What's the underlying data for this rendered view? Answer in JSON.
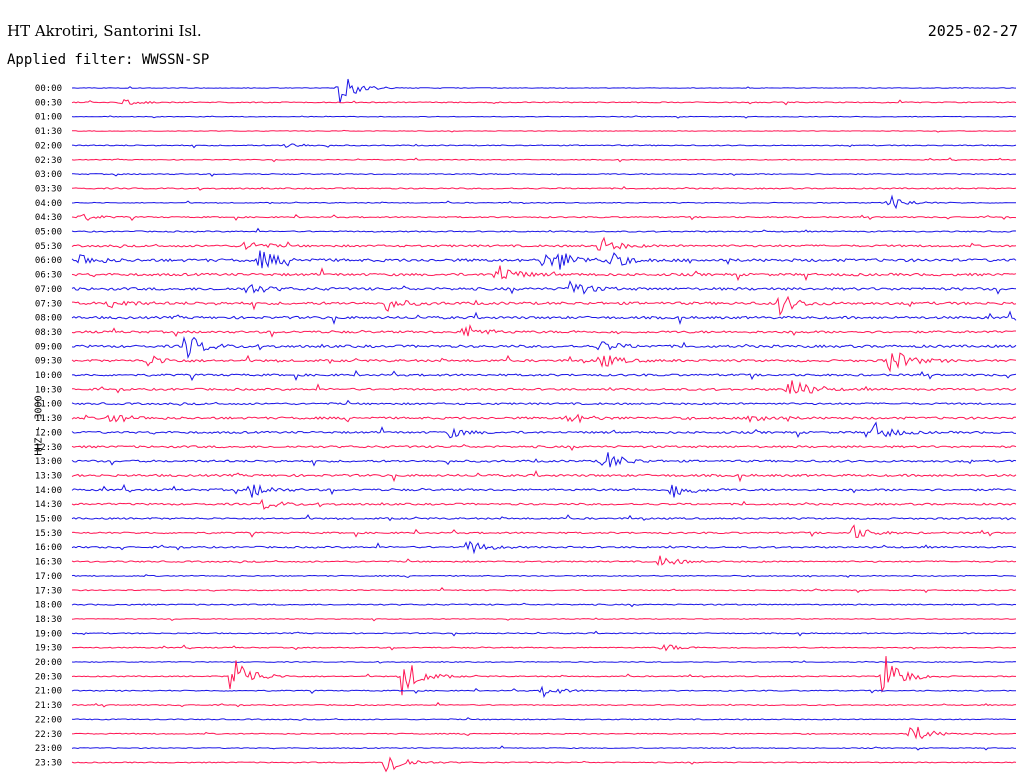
{
  "header": {
    "station": "HT Akrotiri, Santorini Isl.",
    "date": "2025-02-27",
    "filter": "Applied filter: WWSSN-SP"
  },
  "channel_label": "HHZ - 3000",
  "colors": {
    "even": "#1a14e6",
    "odd": "#ff1654"
  },
  "chart_data": {
    "type": "helicorder",
    "title": "HT Akrotiri, Santorini Isl.",
    "date": "2025-02-27",
    "ylabel": "HHZ - 3000",
    "trace_times": [
      "00:00",
      "00:30",
      "01:00",
      "01:30",
      "02:00",
      "02:30",
      "03:00",
      "03:30",
      "04:00",
      "04:30",
      "05:00",
      "05:30",
      "06:00",
      "06:30",
      "07:00",
      "07:30",
      "08:00",
      "08:30",
      "09:00",
      "09:30",
      "10:00",
      "10:30",
      "11:00",
      "11:30",
      "12:00",
      "12:30",
      "13:00",
      "13:30",
      "14:00",
      "14:30",
      "15:00",
      "15:30",
      "16:00",
      "16:30",
      "17:00",
      "17:30",
      "18:00",
      "18:30",
      "19:00",
      "19:30",
      "20:00",
      "20:30",
      "21:00",
      "21:30",
      "22:00",
      "22:30",
      "23:00",
      "23:30"
    ],
    "noise_level": [
      0.3,
      0.5,
      0.3,
      0.3,
      0.5,
      0.4,
      0.5,
      0.6,
      0.4,
      0.6,
      0.6,
      1.0,
      1.4,
      1.2,
      1.3,
      1.3,
      1.2,
      1.1,
      1.2,
      1.1,
      1.0,
      1.0,
      0.9,
      1.1,
      1.0,
      1.0,
      1.0,
      1.1,
      1.0,
      0.9,
      0.8,
      0.8,
      0.8,
      0.7,
      0.5,
      0.5,
      0.6,
      0.4,
      0.5,
      0.5,
      0.4,
      0.5,
      0.5,
      0.5,
      0.5,
      0.5,
      0.4,
      0.5
    ],
    "events": [
      {
        "row": 0,
        "minute": 8.5,
        "amplitude": 16
      },
      {
        "row": 1,
        "minute": 1.6,
        "amplitude": 3
      },
      {
        "row": 4,
        "minute": 6.8,
        "amplitude": 3
      },
      {
        "row": 8,
        "minute": 26.0,
        "amplitude": 8
      },
      {
        "row": 9,
        "minute": 0.3,
        "amplitude": 4
      },
      {
        "row": 11,
        "minute": 5.5,
        "amplitude": 6
      },
      {
        "row": 11,
        "minute": 16.8,
        "amplitude": 9
      },
      {
        "row": 12,
        "minute": 0.2,
        "amplitude": 7
      },
      {
        "row": 12,
        "minute": 6.0,
        "amplitude": 10
      },
      {
        "row": 12,
        "minute": 15.0,
        "amplitude": 8
      },
      {
        "row": 12,
        "minute": 15.5,
        "amplitude": 7
      },
      {
        "row": 12,
        "minute": 17.0,
        "amplitude": 10
      },
      {
        "row": 13,
        "minute": 13.5,
        "amplitude": 12
      },
      {
        "row": 14,
        "minute": 5.5,
        "amplitude": 7
      },
      {
        "row": 14,
        "minute": 15.8,
        "amplitude": 10
      },
      {
        "row": 15,
        "minute": 1.2,
        "amplitude": 5
      },
      {
        "row": 15,
        "minute": 10.0,
        "amplitude": 6
      },
      {
        "row": 15,
        "minute": 22.5,
        "amplitude": 10
      },
      {
        "row": 17,
        "minute": 12.5,
        "amplitude": 8
      },
      {
        "row": 18,
        "minute": 3.6,
        "amplitude": 14
      },
      {
        "row": 18,
        "minute": 16.8,
        "amplitude": 6
      },
      {
        "row": 19,
        "minute": 2.4,
        "amplitude": 6
      },
      {
        "row": 19,
        "minute": 16.8,
        "amplitude": 8
      },
      {
        "row": 19,
        "minute": 26.0,
        "amplitude": 14
      },
      {
        "row": 21,
        "minute": 22.8,
        "amplitude": 14
      },
      {
        "row": 23,
        "minute": 1.2,
        "amplitude": 6
      },
      {
        "row": 23,
        "minute": 15.8,
        "amplitude": 6
      },
      {
        "row": 23,
        "minute": 21.6,
        "amplitude": 6
      },
      {
        "row": 24,
        "minute": 12.0,
        "amplitude": 5
      },
      {
        "row": 24,
        "minute": 25.5,
        "amplitude": 10
      },
      {
        "row": 26,
        "minute": 16.9,
        "amplitude": 12
      },
      {
        "row": 28,
        "minute": 5.7,
        "amplitude": 8
      },
      {
        "row": 28,
        "minute": 19.1,
        "amplitude": 10
      },
      {
        "row": 29,
        "minute": 6.0,
        "amplitude": 6
      },
      {
        "row": 31,
        "minute": 24.8,
        "amplitude": 8
      },
      {
        "row": 32,
        "minute": 12.6,
        "amplitude": 8
      },
      {
        "row": 33,
        "minute": 18.7,
        "amplitude": 6
      },
      {
        "row": 39,
        "minute": 18.8,
        "amplitude": 4
      },
      {
        "row": 41,
        "minute": 5.1,
        "amplitude": 26
      },
      {
        "row": 41,
        "minute": 10.5,
        "amplitude": 22
      },
      {
        "row": 41,
        "minute": 25.8,
        "amplitude": 26
      },
      {
        "row": 42,
        "minute": 15.0,
        "amplitude": 6
      },
      {
        "row": 45,
        "minute": 26.7,
        "amplitude": 10
      },
      {
        "row": 47,
        "minute": 10.0,
        "amplitude": 16
      }
    ]
  }
}
